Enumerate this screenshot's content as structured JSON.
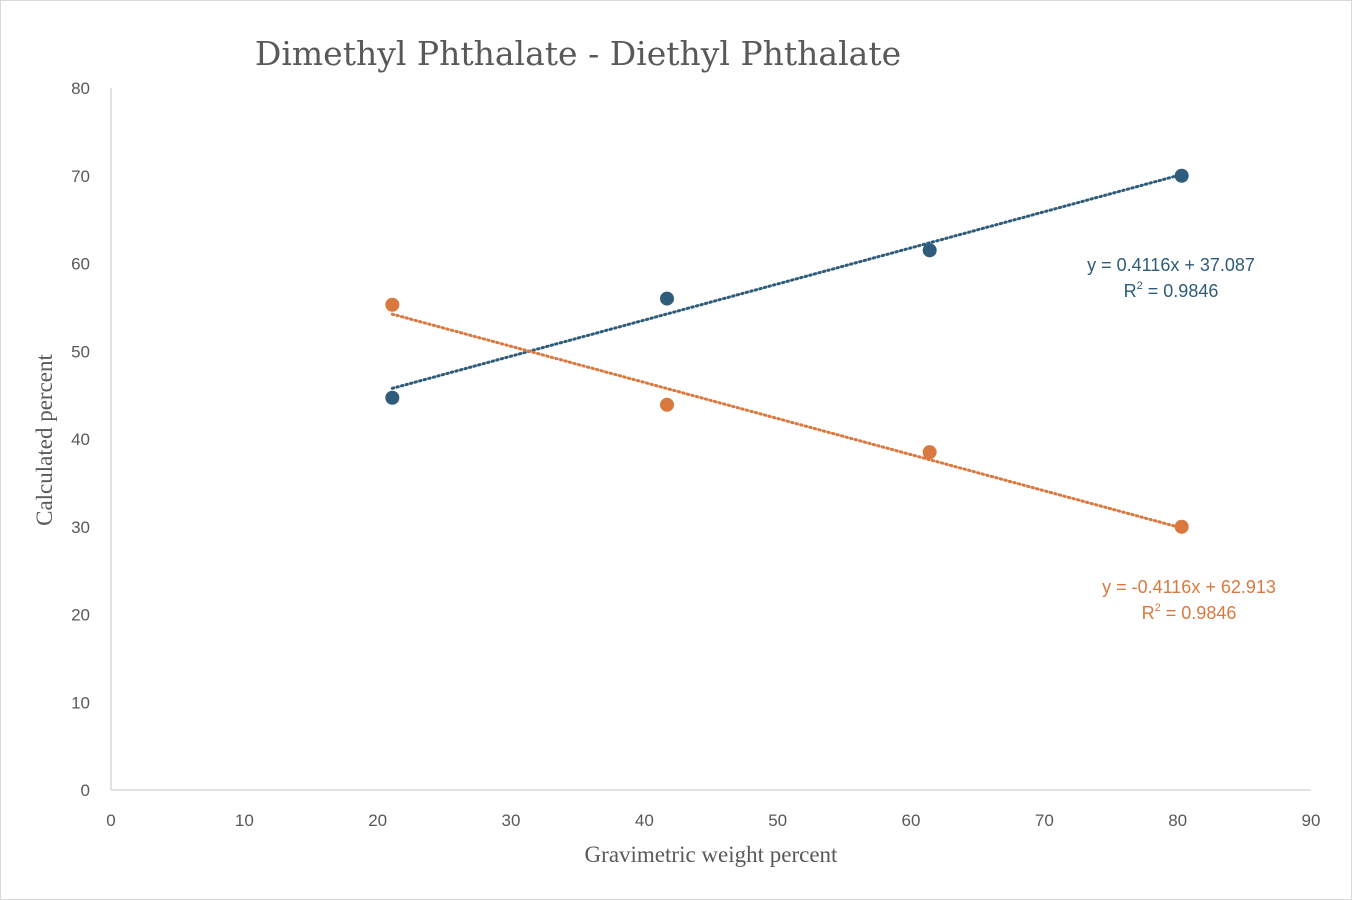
{
  "chart_data": {
    "type": "scatter",
    "title": "Dimethyl Phthalate - Diethyl Phthalate",
    "xlabel": "Gravimetric weight percent",
    "ylabel": "Calculated percent",
    "xlim": [
      0,
      90
    ],
    "ylim": [
      0,
      80
    ],
    "xticks": [
      "0",
      "10",
      "20",
      "30",
      "40",
      "50",
      "60",
      "70",
      "80",
      "90"
    ],
    "yticks": [
      "0",
      "10",
      "20",
      "30",
      "40",
      "50",
      "60",
      "70",
      "80"
    ],
    "grid": false,
    "series": [
      {
        "name": "Dimethyl Phthalate",
        "color": "#2e5c7a",
        "x": [
          21.1,
          41.7,
          61.4,
          80.3
        ],
        "y": [
          44.7,
          56.0,
          61.5,
          70.0
        ],
        "trendline": {
          "type": "linear",
          "slope": 0.4116,
          "intercept": 37.087,
          "equation": "y = 0.4116x + 37.087",
          "r_squared_label": "R",
          "r_squared_value": "= 0.9846"
        }
      },
      {
        "name": "Diethyl Phthalate",
        "color": "#d9793f",
        "x": [
          21.1,
          41.7,
          61.4,
          80.3
        ],
        "y": [
          55.3,
          43.9,
          38.5,
          30.0
        ],
        "trendline": {
          "type": "linear",
          "slope": -0.4116,
          "intercept": 62.913,
          "equation": "y = -0.4116x + 62.913",
          "r_squared_label": "R",
          "r_squared_value": "= 0.9846"
        }
      }
    ]
  }
}
